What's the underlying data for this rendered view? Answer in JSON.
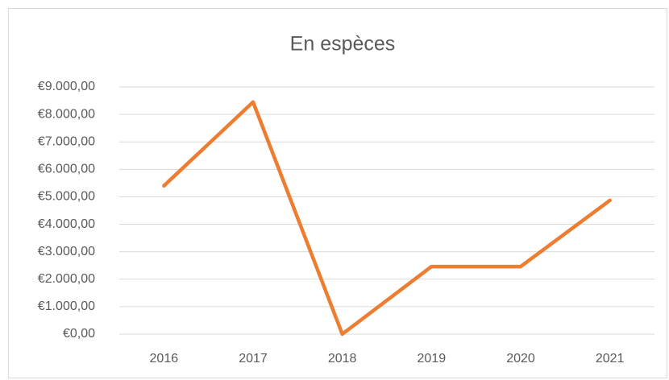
{
  "chart_data": {
    "type": "line",
    "title": "En espèces",
    "categories": [
      "2016",
      "2017",
      "2018",
      "2019",
      "2020",
      "2021"
    ],
    "values": [
      5400,
      8450,
      0,
      2460,
      2460,
      4870
    ],
    "color": "#ed7d31",
    "ylim": [
      0,
      9000
    ],
    "yticks": [
      {
        "value": 0,
        "label": "€0,00"
      },
      {
        "value": 1000,
        "label": "€1.000,00"
      },
      {
        "value": 2000,
        "label": "€2.000,00"
      },
      {
        "value": 3000,
        "label": "€3.000,00"
      },
      {
        "value": 4000,
        "label": "€4.000,00"
      },
      {
        "value": 5000,
        "label": "€5.000,00"
      },
      {
        "value": 6000,
        "label": "€6.000,00"
      },
      {
        "value": 7000,
        "label": "€7.000,00"
      },
      {
        "value": 8000,
        "label": "€8.000,00"
      },
      {
        "value": 9000,
        "label": "€9.000,00"
      }
    ],
    "grid": true
  }
}
